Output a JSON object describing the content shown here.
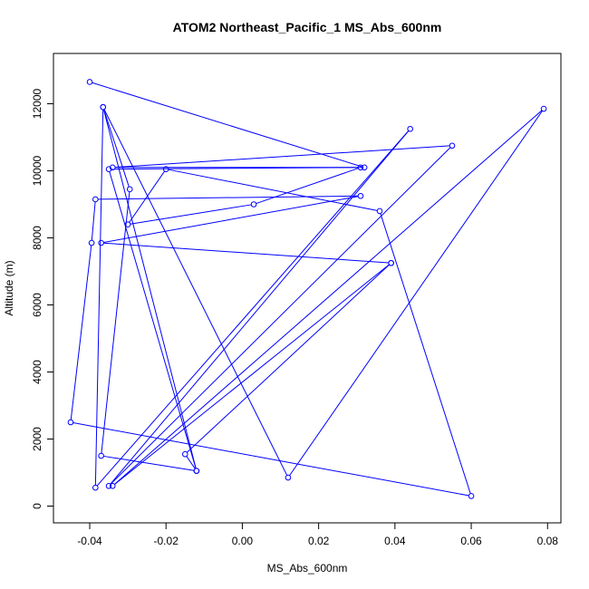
{
  "chart_data": {
    "type": "line",
    "title": "ATOM2 Northeast_Pacific_1 MS_Abs_600nm",
    "xlabel": "MS_Abs_600nm",
    "ylabel": "Altitude (m)",
    "xlim": [
      -0.0495,
      0.0835
    ],
    "ylim": [
      -500,
      13500
    ],
    "xticks": [
      -0.04,
      -0.02,
      0.0,
      0.02,
      0.04,
      0.06,
      0.08
    ],
    "xtick_labels": [
      "-0.04",
      "-0.02",
      "0.00",
      "0.02",
      "0.04",
      "0.06",
      "0.08"
    ],
    "yticks": [
      0,
      2000,
      4000,
      6000,
      8000,
      10000,
      12000
    ],
    "ytick_labels": [
      "0",
      "2000",
      "4000",
      "6000",
      "8000",
      "10000",
      "12000"
    ],
    "line_color": "#0000ff",
    "marker": "open-circle",
    "grid": false,
    "points": [
      {
        "x": -0.04,
        "y": 12650
      },
      {
        "x": 0.032,
        "y": 10100
      },
      {
        "x": -0.034,
        "y": 10100
      },
      {
        "x": 0.055,
        "y": 10750
      },
      {
        "x": -0.035,
        "y": 600
      },
      {
        "x": 0.044,
        "y": 11250
      },
      {
        "x": -0.0385,
        "y": 550
      },
      {
        "x": -0.0365,
        "y": 11900
      },
      {
        "x": -0.012,
        "y": 1050
      },
      {
        "x": -0.037,
        "y": 1500
      },
      {
        "x": -0.0295,
        "y": 9450
      },
      {
        "x": -0.0365,
        "y": 11900
      },
      {
        "x": 0.012,
        "y": 850
      },
      {
        "x": 0.079,
        "y": 11850
      },
      {
        "x": -0.034,
        "y": 600
      },
      {
        "x": 0.039,
        "y": 7250
      },
      {
        "x": -0.037,
        "y": 7850
      },
      {
        "x": 0.031,
        "y": 9250
      },
      {
        "x": -0.0385,
        "y": 9150
      },
      {
        "x": -0.0395,
        "y": 7850
      },
      {
        "x": -0.045,
        "y": 2500
      },
      {
        "x": 0.06,
        "y": 300
      },
      {
        "x": 0.036,
        "y": 8800
      },
      {
        "x": -0.02,
        "y": 10050
      },
      {
        "x": -0.03,
        "y": 8400
      },
      {
        "x": 0.003,
        "y": 9000
      },
      {
        "x": 0.031,
        "y": 10100
      },
      {
        "x": -0.035,
        "y": 10050
      },
      {
        "x": -0.012,
        "y": 1050
      },
      {
        "x": -0.015,
        "y": 1550
      },
      {
        "x": 0.039,
        "y": 7250
      }
    ]
  }
}
